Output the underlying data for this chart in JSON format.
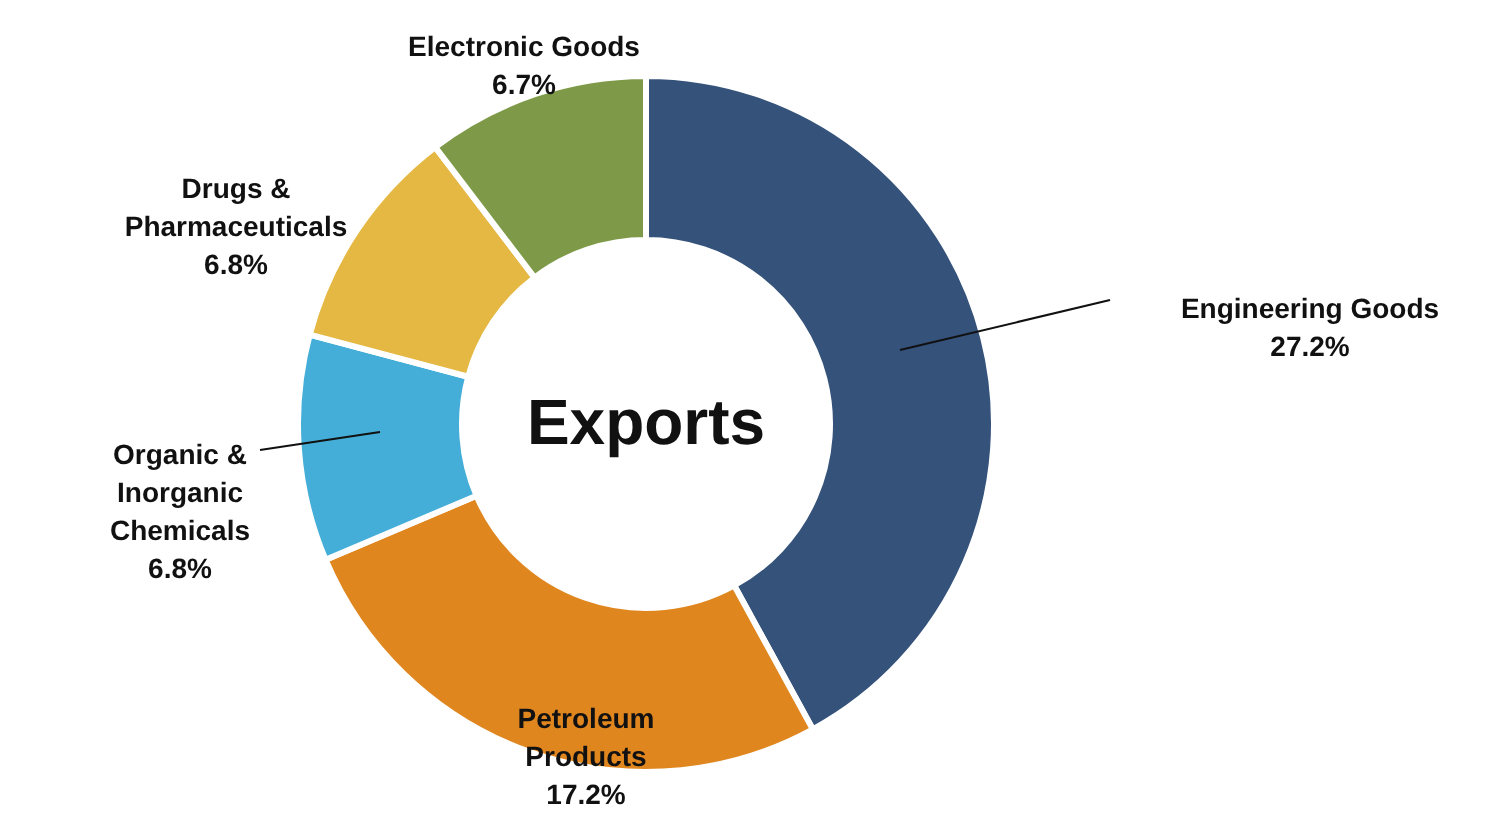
{
  "chart_data": {
    "type": "donut",
    "title": "Exports",
    "categories": [
      "Engineering Goods",
      "Petroleum\nProducts",
      "Organic &\nInorganic\nChemicals",
      "Drugs &\nPharmaceuticals",
      "Electronic Goods"
    ],
    "values": [
      27.2,
      17.2,
      6.8,
      6.8,
      6.7
    ],
    "value_labels": [
      "27.2%",
      "17.2%",
      "6.8%",
      "6.8%",
      "6.7%"
    ],
    "colors": [
      "#34527a",
      "#e0861f",
      "#44aed8",
      "#e4b843",
      "#7e9a48"
    ]
  }
}
